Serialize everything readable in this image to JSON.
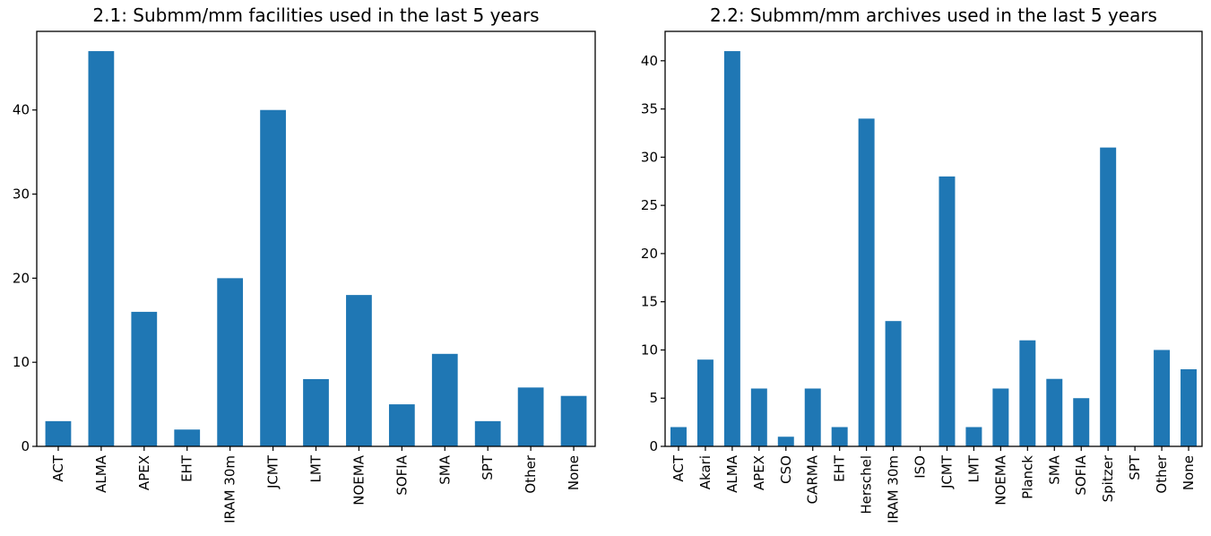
{
  "chart_data": [
    {
      "type": "bar",
      "title": "2.1: Submm/mm facilities used in the last 5 years",
      "xlabel": "",
      "ylabel": "",
      "categories": [
        "ACT",
        "ALMA",
        "APEX",
        "EHT",
        "IRAM 30m",
        "JCMT",
        "LMT",
        "NOEMA",
        "SOFIA",
        "SMA",
        "SPT",
        "Other",
        "None"
      ],
      "values": [
        3,
        47,
        16,
        2,
        20,
        40,
        8,
        18,
        5,
        11,
        3,
        7,
        6
      ],
      "ylim": [
        0,
        49.35
      ],
      "yticks": [
        0,
        10,
        20,
        30,
        40
      ],
      "color": "#1f77b4",
      "grid": false
    },
    {
      "type": "bar",
      "title": "2.2: Submm/mm archives used in the last 5 years",
      "xlabel": "",
      "ylabel": "",
      "categories": [
        "ACT",
        "Akari",
        "ALMA",
        "APEX",
        "CSO",
        "CARMA",
        "EHT",
        "Herschel",
        "IRAM 30m",
        "ISO",
        "JCMT",
        "LMT",
        "NOEMA",
        "Planck",
        "SMA",
        "SOFIA",
        "Spitzer",
        "SPT",
        "Other",
        "None"
      ],
      "values": [
        2,
        9,
        41,
        6,
        1,
        6,
        2,
        34,
        13,
        0,
        28,
        2,
        6,
        11,
        7,
        5,
        31,
        0,
        10,
        8
      ],
      "ylim": [
        0,
        43.05
      ],
      "yticks": [
        0,
        5,
        10,
        15,
        20,
        25,
        30,
        35,
        40
      ],
      "color": "#1f77b4",
      "grid": false
    }
  ]
}
